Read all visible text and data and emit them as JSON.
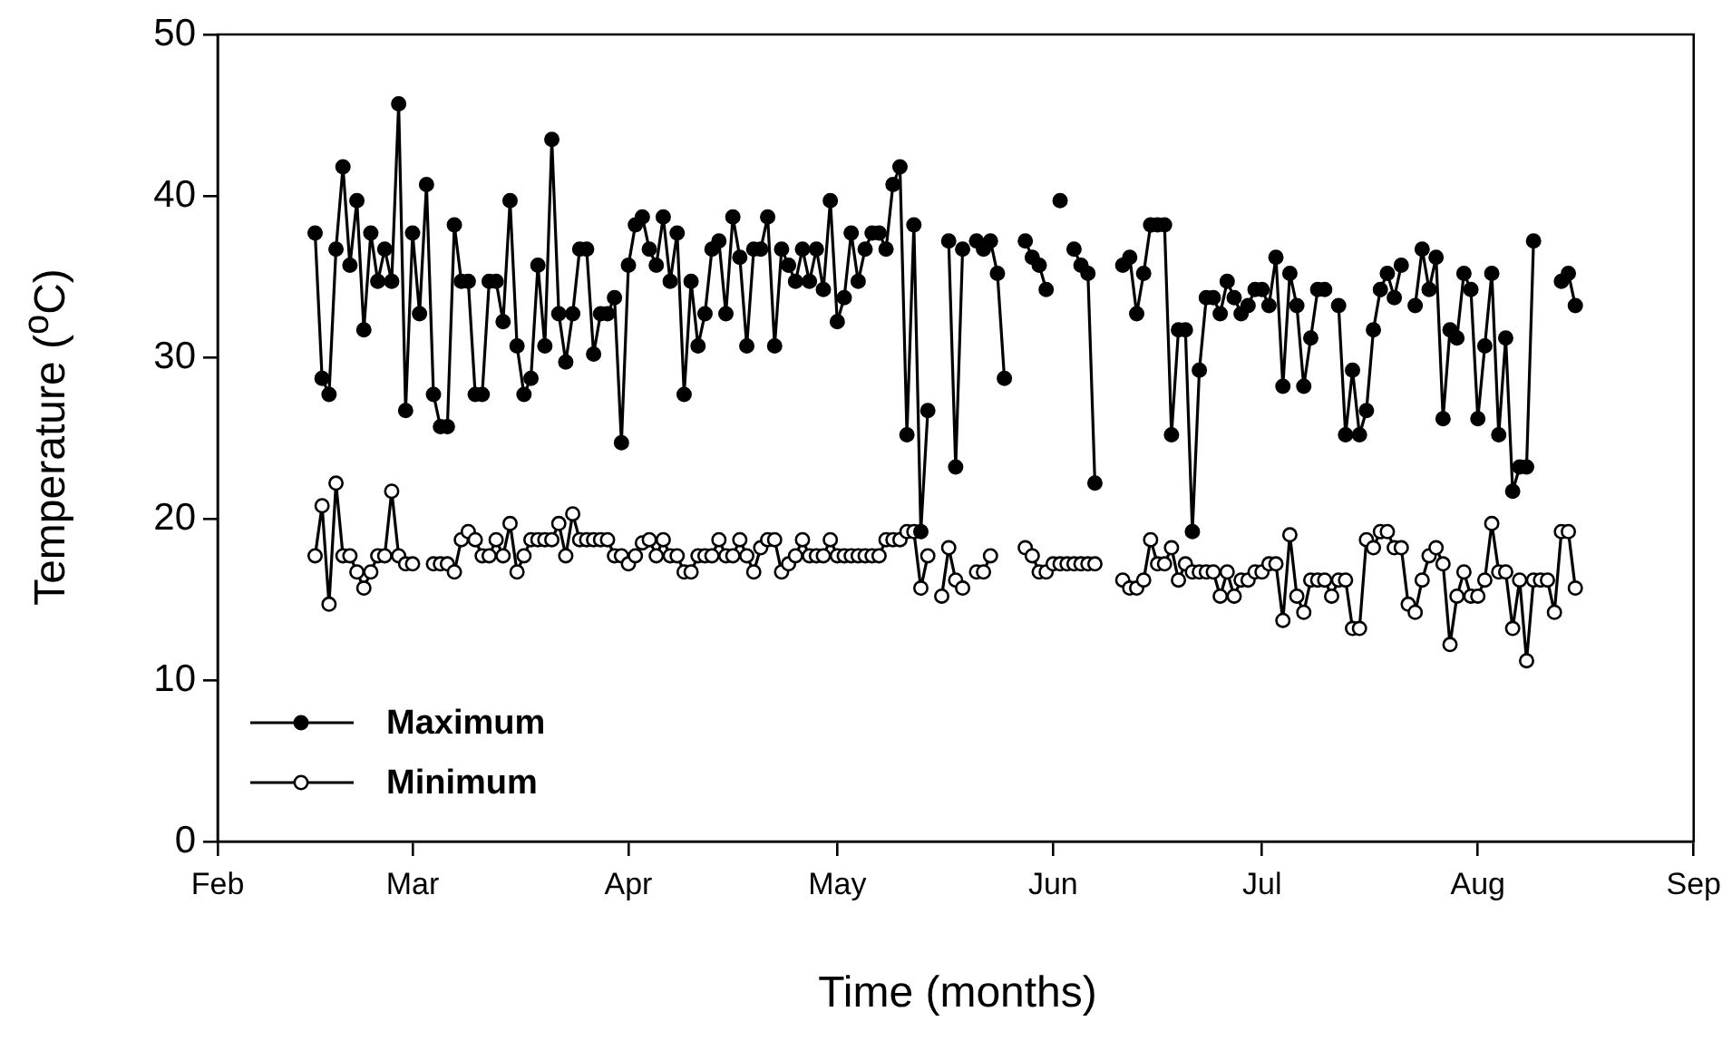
{
  "chart_data": {
    "type": "line",
    "xlabel": "Time (months)",
    "ylabel": "Temperature ($^{o}$C)",
    "xlim": [
      "--02-01",
      "--09-01"
    ],
    "xticks": [
      {
        "value": "--02-01",
        "label": "Feb"
      },
      {
        "value": "--03-01",
        "label": "Mar"
      },
      {
        "value": "--04-01",
        "label": "Apr"
      },
      {
        "value": "--05-01",
        "label": "May"
      },
      {
        "value": "--06-01",
        "label": "Jun"
      },
      {
        "value": "--07-01",
        "label": "Jul"
      },
      {
        "value": "--08-01",
        "label": "Aug"
      },
      {
        "value": "--09-01",
        "label": "Sep"
      }
    ],
    "ylim": [
      0,
      50
    ],
    "yticks": [
      0,
      10,
      20,
      30,
      40,
      50
    ],
    "grid": false,
    "legend": "bottom left",
    "marker": "circle",
    "line_style": "solid",
    "x": [
      "--02-15",
      "--02-16",
      "--02-17",
      "--02-18",
      "--02-19",
      "--02-20",
      "--02-21",
      "--02-22",
      "--02-23",
      "--02-24",
      "--02-25",
      "--02-26",
      "--02-27",
      "--02-28",
      "--03-01",
      "--03-02",
      "--03-03",
      "--03-04",
      "--03-05",
      "--03-06",
      "--03-07",
      "--03-08",
      "--03-09",
      "--03-10",
      "--03-11",
      "--03-12",
      "--03-13",
      "--03-14",
      "--03-15",
      "--03-16",
      "--03-17",
      "--03-18",
      "--03-19",
      "--03-20",
      "--03-21",
      "--03-22",
      "--03-23",
      "--03-24",
      "--03-25",
      "--03-26",
      "--03-27",
      "--03-28",
      "--03-29",
      "--03-30",
      "--03-31",
      "--04-01",
      "--04-02",
      "--04-03",
      "--04-04",
      "--04-05",
      "--04-06",
      "--04-07",
      "--04-08",
      "--04-09",
      "--04-10",
      "--04-11",
      "--04-12",
      "--04-13",
      "--04-14",
      "--04-15",
      "--04-16",
      "--04-17",
      "--04-18",
      "--04-19",
      "--04-20",
      "--04-21",
      "--04-22",
      "--04-23",
      "--04-24",
      "--04-25",
      "--04-26",
      "--04-27",
      "--04-28",
      "--04-29",
      "--04-30",
      "--05-01",
      "--05-02",
      "--05-03",
      "--05-04",
      "--05-05",
      "--05-06",
      "--05-07",
      "--05-08",
      "--05-09",
      "--05-10",
      "--05-11",
      "--05-12",
      "--05-13",
      "--05-14",
      "--05-15",
      "--05-16",
      "--05-17",
      "--05-18",
      "--05-19",
      "--05-20",
      "--05-21",
      "--05-22",
      "--05-23",
      "--05-24",
      "--05-25",
      "--05-26",
      "--05-27",
      "--05-28",
      "--05-29",
      "--05-30",
      "--05-31",
      "--06-01",
      "--06-02",
      "--06-03",
      "--06-04",
      "--06-05",
      "--06-06",
      "--06-07",
      "--06-08",
      "--06-09",
      "--06-10",
      "--06-11",
      "--06-12",
      "--06-13",
      "--06-14",
      "--06-15",
      "--06-16",
      "--06-17",
      "--06-18",
      "--06-19",
      "--06-20",
      "--06-21",
      "--06-22",
      "--06-23",
      "--06-24",
      "--06-25",
      "--06-26",
      "--06-27",
      "--06-28",
      "--06-29",
      "--06-30",
      "--07-01",
      "--07-02",
      "--07-03",
      "--07-04",
      "--07-05",
      "--07-06",
      "--07-07",
      "--07-08",
      "--07-09",
      "--07-10",
      "--07-11",
      "--07-12",
      "--07-13",
      "--07-14",
      "--07-15",
      "--07-16",
      "--07-17",
      "--07-18",
      "--07-19",
      "--07-20",
      "--07-21",
      "--07-22",
      "--07-23",
      "--07-24",
      "--07-25",
      "--07-26",
      "--07-27",
      "--07-28",
      "--07-29",
      "--07-30",
      "--07-31",
      "--08-01",
      "--08-02",
      "--08-03",
      "--08-04",
      "--08-05",
      "--08-06",
      "--08-07",
      "--08-08",
      "--08-09",
      "--08-10",
      "--08-11",
      "--08-12",
      "--08-13",
      "--08-14",
      "--08-15"
    ],
    "series": [
      {
        "name": "Maximum",
        "color": "#000000",
        "values": [
          37.7,
          28.7,
          27.7,
          36.7,
          41.8,
          35.7,
          39.7,
          31.7,
          37.7,
          34.7,
          36.7,
          34.7,
          45.7,
          26.7,
          37.7,
          32.7,
          40.7,
          27.7,
          25.7,
          25.7,
          38.2,
          34.7,
          34.7,
          27.7,
          27.7,
          34.7,
          34.7,
          32.2,
          39.7,
          30.7,
          27.7,
          28.7,
          35.7,
          30.7,
          43.5,
          32.7,
          29.7,
          32.7,
          36.7,
          36.7,
          30.2,
          32.7,
          32.7,
          33.7,
          24.7,
          35.7,
          38.2,
          38.7,
          36.7,
          35.7,
          38.7,
          34.7,
          37.7,
          27.7,
          34.7,
          30.7,
          32.7,
          36.7,
          37.2,
          32.7,
          38.7,
          36.2,
          30.7,
          36.7,
          36.7,
          38.7,
          30.7,
          36.7,
          35.7,
          34.7,
          36.7,
          34.7,
          36.7,
          34.2,
          39.7,
          32.2,
          33.7,
          37.7,
          34.7,
          36.7,
          37.7,
          37.7,
          36.7,
          40.7,
          41.8,
          25.2,
          38.2,
          19.2,
          26.7,
          null,
          null,
          37.2,
          23.2,
          36.7,
          null,
          37.2,
          36.7,
          37.2,
          35.2,
          28.7,
          null,
          null,
          37.2,
          36.2,
          35.7,
          34.2,
          null,
          39.7,
          null,
          36.7,
          35.7,
          35.2,
          22.2,
          null,
          null,
          null,
          35.7,
          36.2,
          32.7,
          35.2,
          38.2,
          38.2,
          38.2,
          25.2,
          31.7,
          31.7,
          19.2,
          29.2,
          33.7,
          33.7,
          32.7,
          34.7,
          33.7,
          32.7,
          33.2,
          34.2,
          34.2,
          33.2,
          36.2,
          28.2,
          35.2,
          33.2,
          28.2,
          31.2,
          34.2,
          34.2,
          null,
          33.2,
          25.2,
          29.2,
          25.2,
          26.7,
          31.7,
          34.2,
          35.2,
          33.7,
          35.7,
          null,
          33.2,
          36.7,
          34.2,
          36.2,
          26.2,
          31.7,
          31.2,
          35.2,
          34.2,
          26.2,
          30.7,
          35.2,
          25.2,
          31.2,
          21.7,
          23.2,
          23.2,
          37.2,
          null,
          null,
          null,
          34.7,
          35.2,
          33.2
        ]
      },
      {
        "name": "Minimum",
        "color": "#000000",
        "values": [
          17.7,
          20.8,
          14.7,
          22.2,
          17.7,
          17.7,
          16.7,
          15.7,
          16.7,
          17.7,
          17.7,
          21.7,
          17.7,
          17.2,
          17.2,
          null,
          null,
          17.2,
          17.2,
          17.2,
          16.7,
          18.7,
          19.2,
          18.7,
          17.7,
          17.7,
          18.7,
          17.7,
          19.7,
          16.7,
          17.7,
          18.7,
          18.7,
          18.7,
          18.7,
          19.7,
          17.7,
          20.3,
          18.7,
          18.7,
          18.7,
          18.7,
          18.7,
          17.7,
          17.7,
          17.2,
          17.7,
          18.5,
          18.7,
          17.7,
          18.7,
          17.7,
          17.7,
          16.7,
          16.7,
          17.7,
          17.7,
          17.7,
          18.7,
          17.7,
          17.7,
          18.7,
          17.7,
          16.7,
          18.2,
          18.7,
          18.7,
          16.7,
          17.2,
          17.7,
          18.7,
          17.7,
          17.7,
          17.7,
          18.7,
          17.7,
          17.7,
          17.7,
          17.7,
          17.7,
          17.7,
          17.7,
          18.7,
          18.7,
          18.7,
          19.2,
          19.2,
          15.7,
          17.7,
          null,
          15.2,
          18.2,
          16.2,
          15.7,
          null,
          16.7,
          16.7,
          17.7,
          null,
          null,
          null,
          null,
          18.2,
          17.7,
          16.7,
          16.7,
          17.2,
          17.2,
          17.2,
          17.2,
          17.2,
          17.2,
          17.2,
          null,
          null,
          null,
          16.2,
          15.7,
          15.7,
          16.2,
          18.7,
          17.2,
          17.2,
          18.2,
          16.2,
          17.2,
          16.7,
          16.7,
          16.7,
          16.7,
          15.2,
          16.7,
          15.2,
          16.2,
          16.2,
          16.7,
          16.7,
          17.2,
          17.2,
          13.7,
          19.0,
          15.2,
          14.2,
          16.2,
          16.2,
          16.2,
          15.2,
          16.2,
          16.2,
          13.2,
          13.2,
          18.7,
          18.2,
          19.2,
          19.2,
          18.2,
          18.2,
          14.7,
          14.2,
          16.2,
          17.7,
          18.2,
          17.2,
          12.2,
          15.2,
          16.7,
          15.2,
          15.2,
          16.2,
          19.7,
          16.7,
          16.7,
          13.2,
          16.2,
          11.2,
          16.2,
          16.2,
          16.2,
          14.2,
          19.2,
          19.2,
          15.7
        ]
      }
    ]
  }
}
